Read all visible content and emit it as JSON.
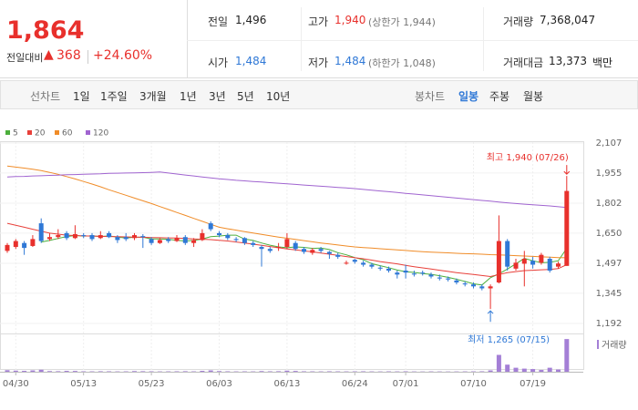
{
  "header": {
    "price": "1,864",
    "change_label": "전일대비",
    "change": "368",
    "change_rate": "+24.60%",
    "stats": [
      {
        "label": "전일",
        "value": "1,496"
      },
      {
        "label": "고가",
        "value": "1,940",
        "note": "(상한가 1,944)"
      },
      {
        "label": "거래량",
        "value": "7,368,047"
      },
      {
        "label": "시가",
        "value": "1,484"
      },
      {
        "label": "저가",
        "value": "1,484",
        "note": "(하한가 1,048)"
      },
      {
        "label": "거래대금",
        "value": "13,373",
        "unit": "백만"
      }
    ]
  },
  "toolbar": {
    "line_chart": "선차트",
    "line_periods": [
      "1일",
      "1주일",
      "3개월",
      "1년",
      "3년",
      "5년",
      "10년"
    ],
    "candle_chart": "봉차트",
    "candle_periods": [
      "일봉",
      "주봉",
      "월봉"
    ]
  },
  "chart_data": {
    "type": "candlestick",
    "categories": [
      null,
      "04/30",
      null,
      null,
      null,
      null,
      null,
      null,
      null,
      "05/13",
      null,
      null,
      null,
      null,
      null,
      null,
      null,
      "05/23",
      null,
      null,
      null,
      null,
      null,
      null,
      null,
      "06/03",
      null,
      null,
      null,
      null,
      null,
      null,
      null,
      "06/13",
      null,
      null,
      null,
      null,
      null,
      null,
      null,
      "06/24",
      null,
      null,
      null,
      null,
      null,
      "07/01",
      null,
      null,
      null,
      null,
      null,
      null,
      null,
      "07/10",
      null,
      null,
      null,
      null,
      null,
      null,
      "07/19",
      null,
      null,
      null,
      null
    ],
    "open": [
      1560,
      1580,
      1600,
      1585,
      1700,
      1620,
      1630,
      1650,
      1625,
      1640,
      1640,
      1625,
      1650,
      1630,
      1630,
      1625,
      1635,
      1620,
      1600,
      1620,
      1610,
      1630,
      1600,
      1615,
      1700,
      1650,
      1640,
      1620,
      1625,
      1600,
      1580,
      1570,
      1575,
      1580,
      1600,
      1570,
      1550,
      1570,
      1555,
      1540,
      1500,
      1515,
      1500,
      1490,
      1475,
      1470,
      1450,
      1460,
      1445,
      1450,
      1440,
      1425,
      1420,
      1410,
      1395,
      1390,
      1380,
      1370,
      1400,
      1610,
      1470,
      1495,
      1510,
      1500,
      1520,
      1480,
      1484
    ],
    "high": [
      1600,
      1620,
      1610,
      1640,
      1725,
      1650,
      1670,
      1660,
      1690,
      1650,
      1650,
      1660,
      1660,
      1640,
      1650,
      1650,
      1645,
      1630,
      1625,
      1630,
      1640,
      1640,
      1625,
      1670,
      1710,
      1660,
      1650,
      1630,
      1630,
      1610,
      1590,
      1580,
      1600,
      1650,
      1610,
      1580,
      1575,
      1580,
      1560,
      1550,
      1510,
      1520,
      1510,
      1500,
      1485,
      1480,
      1460,
      1490,
      1460,
      1460,
      1450,
      1440,
      1430,
      1420,
      1405,
      1400,
      1390,
      1390,
      1740,
      1620,
      1520,
      1560,
      1530,
      1550,
      1530,
      1505,
      1940
    ],
    "low": [
      1550,
      1570,
      1540,
      1580,
      1600,
      1610,
      1620,
      1615,
      1620,
      1625,
      1610,
      1620,
      1625,
      1600,
      1610,
      1615,
      1575,
      1590,
      1595,
      1600,
      1605,
      1590,
      1580,
      1610,
      1660,
      1630,
      1615,
      1605,
      1590,
      1580,
      1480,
      1550,
      1560,
      1570,
      1560,
      1545,
      1540,
      1550,
      1520,
      1520,
      1490,
      1495,
      1480,
      1470,
      1460,
      1450,
      1420,
      1420,
      1430,
      1435,
      1420,
      1410,
      1405,
      1390,
      1380,
      1370,
      1360,
      1265,
      1395,
      1460,
      1460,
      1380,
      1470,
      1490,
      1450,
      1470,
      1484
    ],
    "close": [
      1590,
      1610,
      1575,
      1620,
      1610,
      1630,
      1640,
      1625,
      1645,
      1635,
      1620,
      1640,
      1630,
      1615,
      1620,
      1640,
      1630,
      1600,
      1615,
      1610,
      1625,
      1600,
      1615,
      1650,
      1670,
      1640,
      1625,
      1615,
      1600,
      1590,
      1570,
      1560,
      1580,
      1620,
      1570,
      1555,
      1565,
      1560,
      1545,
      1530,
      1500,
      1505,
      1490,
      1480,
      1470,
      1460,
      1440,
      1450,
      1440,
      1445,
      1430,
      1420,
      1415,
      1400,
      1390,
      1380,
      1370,
      1380,
      1610,
      1480,
      1500,
      1520,
      1490,
      1540,
      1460,
      1496,
      1864
    ],
    "up_color": "#e8302c",
    "down_color": "#2f78d6",
    "series": [
      {
        "name": "5",
        "color": "#4caf3c",
        "values": [
          null,
          null,
          null,
          null,
          1605,
          1613,
          1623,
          1633,
          1638,
          1635,
          1636,
          1633,
          1636,
          1630,
          1625,
          1629,
          1629,
          1621,
          1621,
          1619,
          1614,
          1610,
          1613,
          1620,
          1632,
          1635,
          1640,
          1640,
          1620,
          1613,
          1600,
          1589,
          1580,
          1576,
          1580,
          1578,
          1573,
          1574,
          1567,
          1551,
          1540,
          1526,
          1515,
          1495,
          1485,
          1475,
          1463,
          1454,
          1451,
          1445,
          1441,
          1434,
          1426,
          1416,
          1405,
          1393,
          1387,
          1424,
          1444,
          1468,
          1494,
          1522,
          1510,
          1500,
          1502,
          1510,
          1573
        ]
      },
      {
        "name": "20",
        "color": "#e8403a",
        "values": [
          1700,
          1690,
          1680,
          1670,
          1660,
          1650,
          1645,
          1640,
          1638,
          1636,
          1635,
          1634,
          1633,
          1632,
          1631,
          1630,
          1629,
          1628,
          1627,
          1626,
          1625,
          1623,
          1621,
          1619,
          1617,
          1614,
          1610,
          1605,
          1600,
          1594,
          1588,
          1582,
          1576,
          1570,
          1565,
          1560,
          1555,
          1549,
          1543,
          1537,
          1531,
          1525,
          1520,
          1513,
          1506,
          1500,
          1494,
          1487,
          1480,
          1474,
          1468,
          1462,
          1456,
          1450,
          1445,
          1440,
          1435,
          1430,
          1440,
          1450,
          1455,
          1460,
          1462,
          1464,
          1466,
          1470,
          1490
        ]
      },
      {
        "name": "60",
        "color": "#f08c28",
        "values": [
          1990,
          1985,
          1980,
          1974,
          1967,
          1958,
          1948,
          1937,
          1925,
          1912,
          1899,
          1885,
          1870,
          1856,
          1842,
          1828,
          1814,
          1800,
          1785,
          1770,
          1755,
          1740,
          1725,
          1710,
          1695,
          1680,
          1672,
          1665,
          1658,
          1651,
          1644,
          1637,
          1630,
          1624,
          1618,
          1612,
          1606,
          1600,
          1595,
          1590,
          1585,
          1580,
          1577,
          1574,
          1571,
          1568,
          1565,
          1562,
          1559,
          1556,
          1554,
          1552,
          1550,
          1548,
          1546,
          1545,
          1543,
          1541,
          1540,
          1538,
          1536,
          1534,
          1532,
          1530,
          1528,
          1526,
          1525
        ]
      },
      {
        "name": "120",
        "color": "#a064d0",
        "values": [
          1935,
          1937,
          1938,
          1940,
          1941,
          1943,
          1944,
          1946,
          1947,
          1949,
          1950,
          1951,
          1953,
          1954,
          1955,
          1956,
          1957,
          1958,
          1960,
          1955,
          1950,
          1945,
          1940,
          1935,
          1930,
          1926,
          1922,
          1918,
          1915,
          1912,
          1909,
          1906,
          1903,
          1900,
          1897,
          1894,
          1891,
          1888,
          1885,
          1882,
          1879,
          1876,
          1872,
          1868,
          1864,
          1860,
          1856,
          1852,
          1848,
          1844,
          1840,
          1836,
          1832,
          1828,
          1824,
          1820,
          1816,
          1812,
          1808,
          1804,
          1800,
          1797,
          1794,
          1791,
          1788,
          1784,
          1780
        ]
      }
    ],
    "volume": {
      "name": "거래량",
      "color": "#a47fd6",
      "ylim": [
        0,
        7600000
      ],
      "values": [
        350000,
        250000,
        200000,
        300000,
        450000,
        150000,
        120000,
        200000,
        180000,
        100000,
        90000,
        110000,
        100000,
        80000,
        90000,
        150000,
        120000,
        100000,
        80000,
        90000,
        100000,
        120000,
        90000,
        200000,
        300000,
        150000,
        100000,
        80000,
        90000,
        80000,
        150000,
        100000,
        120000,
        250000,
        180000,
        100000,
        90000,
        80000,
        100000,
        90000,
        80000,
        90000,
        100000,
        80000,
        70000,
        90000,
        80000,
        100000,
        70000,
        60000,
        80000,
        70000,
        60000,
        70000,
        80000,
        90000,
        100000,
        300000,
        3800000,
        1600000,
        900000,
        700000,
        600000,
        400000,
        900000,
        500000,
        7368047
      ]
    },
    "ylim": [
      1192,
      2107
    ],
    "yticks": [
      {
        "value": 2107,
        "label": "2,107"
      },
      {
        "value": 1955,
        "label": "1,955"
      },
      {
        "value": 1802,
        "label": "1,802"
      },
      {
        "value": 1650,
        "label": "1,650"
      },
      {
        "value": 1497,
        "label": "1,497"
      },
      {
        "value": 1345,
        "label": "1,345"
      },
      {
        "value": 1192,
        "label": "1,192"
      }
    ],
    "annotations": [
      {
        "text": "최고 1,940 (07/26)",
        "color": "#e8302c"
      },
      {
        "text": "최저 1,265 (07/15)",
        "color": "#2f78d6"
      }
    ],
    "grid": true
  }
}
